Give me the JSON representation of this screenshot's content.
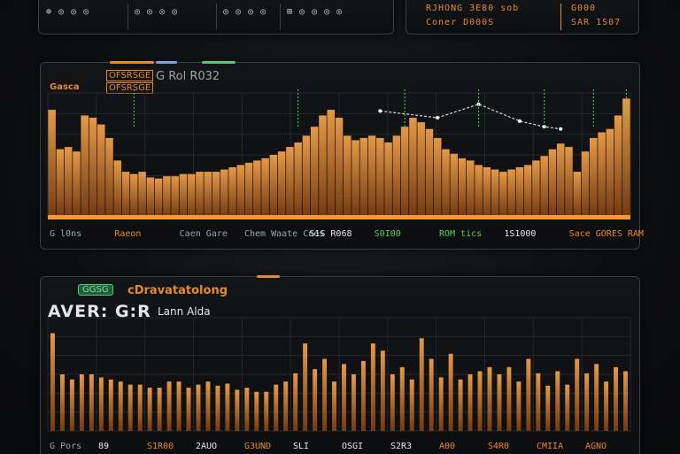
{
  "top_ticker_left": {
    "cells": [
      "⊕ ◎ ◎ ◎",
      "◎ ◎ ◎ ◎",
      "◎ ◎ ◎ ◎",
      "⊞ ◎ ◎ ◎ ◎"
    ]
  },
  "top_ticker_right": {
    "line1": "RJHONG  3E80 sob",
    "line2": "Coner  D000S",
    "line3": "SAR 1S07",
    "flag": "G000"
  },
  "panel1": {
    "title": "G Rol R032",
    "badge_left": "Gasca",
    "badge_boxed": "OFSRSGE",
    "footer": [
      {
        "text": "G l0ns",
        "color": "grey"
      },
      {
        "text": "Raeon",
        "color": "orange"
      },
      {
        "text": "Caen  Gare",
        "color": "grey"
      },
      {
        "text": "Chem  Waate  Cnes",
        "color": "grey"
      },
      {
        "text": "S1S R068",
        "color": "white"
      },
      {
        "text": "S0I00",
        "color": "green"
      },
      {
        "text": "ROM tics",
        "color": "green"
      },
      {
        "text": "1S1000",
        "color": "white"
      },
      {
        "text": "Sace  GORES  RAM",
        "color": "orange"
      }
    ]
  },
  "panel2": {
    "pill": "GGSG",
    "subtitle": "cDravatatolong",
    "title_big": "AVER: G:R",
    "title_small": "Lann Alda",
    "footer": [
      {
        "text": "G  Pors",
        "color": "grey"
      },
      {
        "text": "89",
        "color": "white"
      },
      {
        "text": "S1R00",
        "color": "orange"
      },
      {
        "text": "2AUO",
        "color": "white"
      },
      {
        "text": "G3UND",
        "color": "orange"
      },
      {
        "text": "SLI",
        "color": "white"
      },
      {
        "text": "OSGI",
        "color": "white"
      },
      {
        "text": "S2R3",
        "color": "white"
      },
      {
        "text": "A00",
        "color": "orange"
      },
      {
        "text": "S4R0",
        "color": "orange"
      },
      {
        "text": "CMIIA",
        "color": "orange"
      },
      {
        "text": "AGNO",
        "color": "orange"
      }
    ]
  },
  "colors": {
    "bar_top": "#f0a04a",
    "bar_bottom": "#7a3c10",
    "baseline": "#f29a2e",
    "line_green": "#4fd25e",
    "grid": "#24272c"
  },
  "chart_data": [
    {
      "type": "bar",
      "values": [
        95,
        60,
        62,
        58,
        90,
        88,
        82,
        70,
        50,
        40,
        38,
        40,
        35,
        34,
        36,
        36,
        38,
        38,
        40,
        40,
        40,
        42,
        44,
        46,
        48,
        50,
        52,
        55,
        58,
        62,
        66,
        72,
        80,
        90,
        95,
        88,
        72,
        68,
        70,
        72,
        70,
        66,
        72,
        80,
        88,
        84,
        78,
        70,
        60,
        56,
        52,
        50,
        46,
        44,
        42,
        40,
        42,
        44,
        46,
        50,
        54,
        60,
        65,
        62,
        40,
        58,
        70,
        75,
        78,
        90,
        105
      ],
      "ylim": [
        0,
        110
      ],
      "overlay_line": [
        {
          "i": 40,
          "v": 94
        },
        {
          "i": 47,
          "v": 88
        },
        {
          "i": 52,
          "v": 100
        },
        {
          "i": 57,
          "v": 85
        },
        {
          "i": 60,
          "v": 80
        },
        {
          "i": 62,
          "v": 78
        }
      ]
    },
    {
      "type": "bar",
      "values": [
        95,
        55,
        50,
        55,
        55,
        52,
        50,
        48,
        45,
        45,
        42,
        42,
        48,
        48,
        42,
        45,
        48,
        44,
        46,
        40,
        42,
        38,
        38,
        45,
        48,
        56,
        85,
        60,
        70,
        48,
        65,
        55,
        68,
        85,
        78,
        55,
        62,
        50,
        90,
        70,
        52,
        75,
        50,
        55,
        58,
        62,
        55,
        62,
        48,
        70,
        56,
        44,
        58,
        45,
        70,
        56,
        65,
        48,
        62,
        58
      ],
      "ylim": [
        0,
        110
      ]
    }
  ]
}
